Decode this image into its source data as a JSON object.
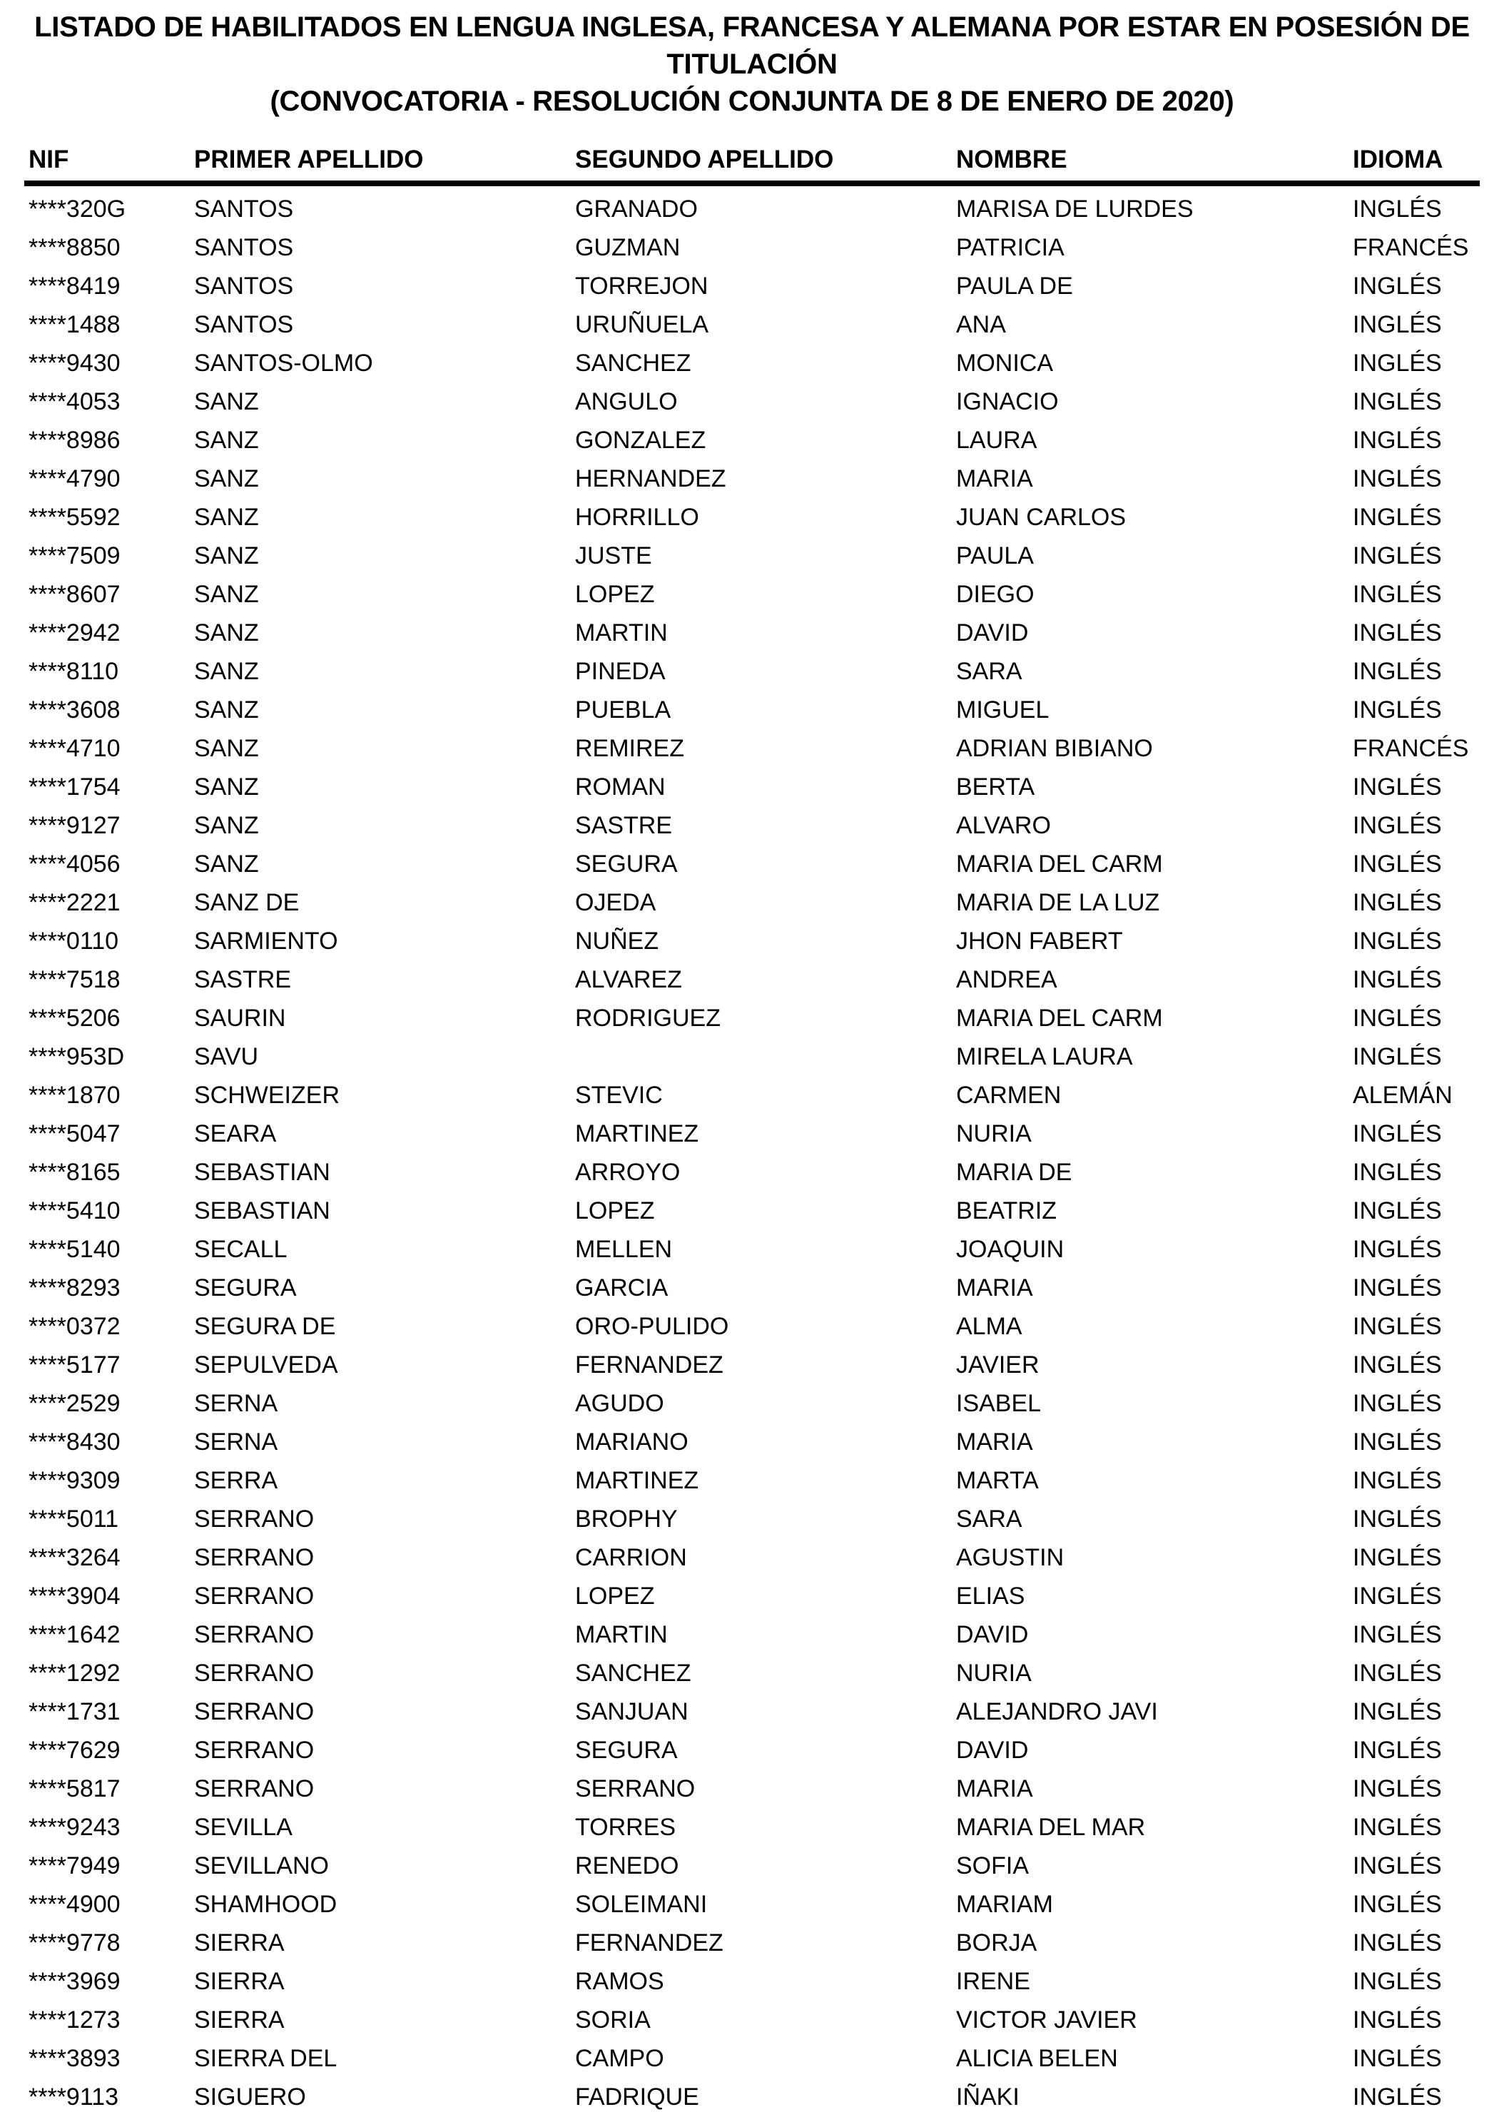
{
  "page": {
    "background_color": "#ffffff",
    "text_color": "#000000"
  },
  "title": {
    "line1": "LISTADO DE HABILITADOS EN LENGUA INGLESA, FRANCESA Y ALEMANA POR ESTAR EN POSESIÓN DE TITULACIÓN",
    "line2": "(CONVOCATORIA - RESOLUCIÓN CONJUNTA DE 8 DE ENERO DE 2020)"
  },
  "table": {
    "headers": [
      "NIF",
      "PRIMER APELLIDO",
      "SEGUNDO APELLIDO",
      "NOMBRE",
      "IDIOMA"
    ],
    "rows": [
      {
        "nif": "****320G",
        "primer_apellido": "SANTOS",
        "segundo_apellido": "GRANADO",
        "nombre": "MARISA DE LURDES",
        "idioma": "INGLÉS"
      },
      {
        "nif": "****8850",
        "primer_apellido": "SANTOS",
        "segundo_apellido": "GUZMAN",
        "nombre": "PATRICIA",
        "idioma": "FRANCÉS"
      },
      {
        "nif": "****8419",
        "primer_apellido": "SANTOS",
        "segundo_apellido": "TORREJON",
        "nombre": "PAULA DE",
        "idioma": "INGLÉS"
      },
      {
        "nif": "****1488",
        "primer_apellido": "SANTOS",
        "segundo_apellido": "URUÑUELA",
        "nombre": "ANA",
        "idioma": "INGLÉS"
      },
      {
        "nif": "****9430",
        "primer_apellido": "SANTOS-OLMO",
        "segundo_apellido": "SANCHEZ",
        "nombre": "MONICA",
        "idioma": "INGLÉS"
      },
      {
        "nif": "****4053",
        "primer_apellido": "SANZ",
        "segundo_apellido": "ANGULO",
        "nombre": "IGNACIO",
        "idioma": "INGLÉS"
      },
      {
        "nif": "****8986",
        "primer_apellido": "SANZ",
        "segundo_apellido": "GONZALEZ",
        "nombre": "LAURA",
        "idioma": "INGLÉS"
      },
      {
        "nif": "****4790",
        "primer_apellido": "SANZ",
        "segundo_apellido": "HERNANDEZ",
        "nombre": "MARIA",
        "idioma": "INGLÉS"
      },
      {
        "nif": "****5592",
        "primer_apellido": "SANZ",
        "segundo_apellido": "HORRILLO",
        "nombre": "JUAN CARLOS",
        "idioma": "INGLÉS"
      },
      {
        "nif": "****7509",
        "primer_apellido": "SANZ",
        "segundo_apellido": "JUSTE",
        "nombre": "PAULA",
        "idioma": "INGLÉS"
      },
      {
        "nif": "****8607",
        "primer_apellido": "SANZ",
        "segundo_apellido": "LOPEZ",
        "nombre": "DIEGO",
        "idioma": "INGLÉS"
      },
      {
        "nif": "****2942",
        "primer_apellido": "SANZ",
        "segundo_apellido": "MARTIN",
        "nombre": "DAVID",
        "idioma": "INGLÉS"
      },
      {
        "nif": "****8110",
        "primer_apellido": "SANZ",
        "segundo_apellido": "PINEDA",
        "nombre": "SARA",
        "idioma": "INGLÉS"
      },
      {
        "nif": "****3608",
        "primer_apellido": "SANZ",
        "segundo_apellido": "PUEBLA",
        "nombre": "MIGUEL",
        "idioma": "INGLÉS"
      },
      {
        "nif": "****4710",
        "primer_apellido": "SANZ",
        "segundo_apellido": "REMIREZ",
        "nombre": "ADRIAN BIBIANO",
        "idioma": "FRANCÉS"
      },
      {
        "nif": "****1754",
        "primer_apellido": "SANZ",
        "segundo_apellido": "ROMAN",
        "nombre": "BERTA",
        "idioma": "INGLÉS"
      },
      {
        "nif": "****9127",
        "primer_apellido": "SANZ",
        "segundo_apellido": "SASTRE",
        "nombre": "ALVARO",
        "idioma": "INGLÉS"
      },
      {
        "nif": "****4056",
        "primer_apellido": "SANZ",
        "segundo_apellido": "SEGURA",
        "nombre": "MARIA DEL CARM",
        "idioma": "INGLÉS"
      },
      {
        "nif": "****2221",
        "primer_apellido": "SANZ DE",
        "segundo_apellido": "OJEDA",
        "nombre": "MARIA DE LA LUZ",
        "idioma": "INGLÉS"
      },
      {
        "nif": "****0110",
        "primer_apellido": "SARMIENTO",
        "segundo_apellido": "NUÑEZ",
        "nombre": "JHON FABERT",
        "idioma": "INGLÉS"
      },
      {
        "nif": "****7518",
        "primer_apellido": "SASTRE",
        "segundo_apellido": "ALVAREZ",
        "nombre": "ANDREA",
        "idioma": "INGLÉS"
      },
      {
        "nif": "****5206",
        "primer_apellido": "SAURIN",
        "segundo_apellido": "RODRIGUEZ",
        "nombre": "MARIA DEL CARM",
        "idioma": "INGLÉS"
      },
      {
        "nif": "****953D",
        "primer_apellido": "SAVU",
        "segundo_apellido": "",
        "nombre": "MIRELA LAURA",
        "idioma": "INGLÉS"
      },
      {
        "nif": "****1870",
        "primer_apellido": "SCHWEIZER",
        "segundo_apellido": "STEVIC",
        "nombre": "CARMEN",
        "idioma": "ALEMÁN"
      },
      {
        "nif": "****5047",
        "primer_apellido": "SEARA",
        "segundo_apellido": "MARTINEZ",
        "nombre": "NURIA",
        "idioma": "INGLÉS"
      },
      {
        "nif": "****8165",
        "primer_apellido": "SEBASTIAN",
        "segundo_apellido": "ARROYO",
        "nombre": "MARIA DE",
        "idioma": "INGLÉS"
      },
      {
        "nif": "****5410",
        "primer_apellido": "SEBASTIAN",
        "segundo_apellido": "LOPEZ",
        "nombre": "BEATRIZ",
        "idioma": "INGLÉS"
      },
      {
        "nif": "****5140",
        "primer_apellido": "SECALL",
        "segundo_apellido": "MELLEN",
        "nombre": "JOAQUIN",
        "idioma": "INGLÉS"
      },
      {
        "nif": "****8293",
        "primer_apellido": "SEGURA",
        "segundo_apellido": "GARCIA",
        "nombre": "MARIA",
        "idioma": "INGLÉS"
      },
      {
        "nif": "****0372",
        "primer_apellido": "SEGURA DE",
        "segundo_apellido": "ORO-PULIDO",
        "nombre": "ALMA",
        "idioma": "INGLÉS"
      },
      {
        "nif": "****5177",
        "primer_apellido": "SEPULVEDA",
        "segundo_apellido": "FERNANDEZ",
        "nombre": "JAVIER",
        "idioma": "INGLÉS"
      },
      {
        "nif": "****2529",
        "primer_apellido": "SERNA",
        "segundo_apellido": "AGUDO",
        "nombre": "ISABEL",
        "idioma": "INGLÉS"
      },
      {
        "nif": "****8430",
        "primer_apellido": "SERNA",
        "segundo_apellido": "MARIANO",
        "nombre": "MARIA",
        "idioma": "INGLÉS"
      },
      {
        "nif": "****9309",
        "primer_apellido": "SERRA",
        "segundo_apellido": "MARTINEZ",
        "nombre": "MARTA",
        "idioma": "INGLÉS"
      },
      {
        "nif": "****5011",
        "primer_apellido": "SERRANO",
        "segundo_apellido": "BROPHY",
        "nombre": "SARA",
        "idioma": "INGLÉS"
      },
      {
        "nif": "****3264",
        "primer_apellido": "SERRANO",
        "segundo_apellido": "CARRION",
        "nombre": "AGUSTIN",
        "idioma": "INGLÉS"
      },
      {
        "nif": "****3904",
        "primer_apellido": "SERRANO",
        "segundo_apellido": "LOPEZ",
        "nombre": "ELIAS",
        "idioma": "INGLÉS"
      },
      {
        "nif": "****1642",
        "primer_apellido": "SERRANO",
        "segundo_apellido": "MARTIN",
        "nombre": "DAVID",
        "idioma": "INGLÉS"
      },
      {
        "nif": "****1292",
        "primer_apellido": "SERRANO",
        "segundo_apellido": "SANCHEZ",
        "nombre": "NURIA",
        "idioma": "INGLÉS"
      },
      {
        "nif": "****1731",
        "primer_apellido": "SERRANO",
        "segundo_apellido": "SANJUAN",
        "nombre": "ALEJANDRO JAVI",
        "idioma": "INGLÉS"
      },
      {
        "nif": "****7629",
        "primer_apellido": "SERRANO",
        "segundo_apellido": "SEGURA",
        "nombre": "DAVID",
        "idioma": "INGLÉS"
      },
      {
        "nif": "****5817",
        "primer_apellido": "SERRANO",
        "segundo_apellido": "SERRANO",
        "nombre": "MARIA",
        "idioma": "INGLÉS"
      },
      {
        "nif": "****9243",
        "primer_apellido": "SEVILLA",
        "segundo_apellido": "TORRES",
        "nombre": "MARIA DEL MAR",
        "idioma": "INGLÉS"
      },
      {
        "nif": "****7949",
        "primer_apellido": "SEVILLANO",
        "segundo_apellido": "RENEDO",
        "nombre": "SOFIA",
        "idioma": "INGLÉS"
      },
      {
        "nif": "****4900",
        "primer_apellido": "SHAMHOOD",
        "segundo_apellido": "SOLEIMANI",
        "nombre": "MARIAM",
        "idioma": "INGLÉS"
      },
      {
        "nif": "****9778",
        "primer_apellido": "SIERRA",
        "segundo_apellido": "FERNANDEZ",
        "nombre": "BORJA",
        "idioma": "INGLÉS"
      },
      {
        "nif": "****3969",
        "primer_apellido": "SIERRA",
        "segundo_apellido": "RAMOS",
        "nombre": "IRENE",
        "idioma": "INGLÉS"
      },
      {
        "nif": "****1273",
        "primer_apellido": "SIERRA",
        "segundo_apellido": "SORIA",
        "nombre": "VICTOR JAVIER",
        "idioma": "INGLÉS"
      },
      {
        "nif": "****3893",
        "primer_apellido": "SIERRA DEL",
        "segundo_apellido": "CAMPO",
        "nombre": "ALICIA BELEN",
        "idioma": "INGLÉS"
      },
      {
        "nif": "****9113",
        "primer_apellido": "SIGUERO",
        "segundo_apellido": "FADRIQUE",
        "nombre": "IÑAKI",
        "idioma": "INGLÉS"
      }
    ]
  }
}
